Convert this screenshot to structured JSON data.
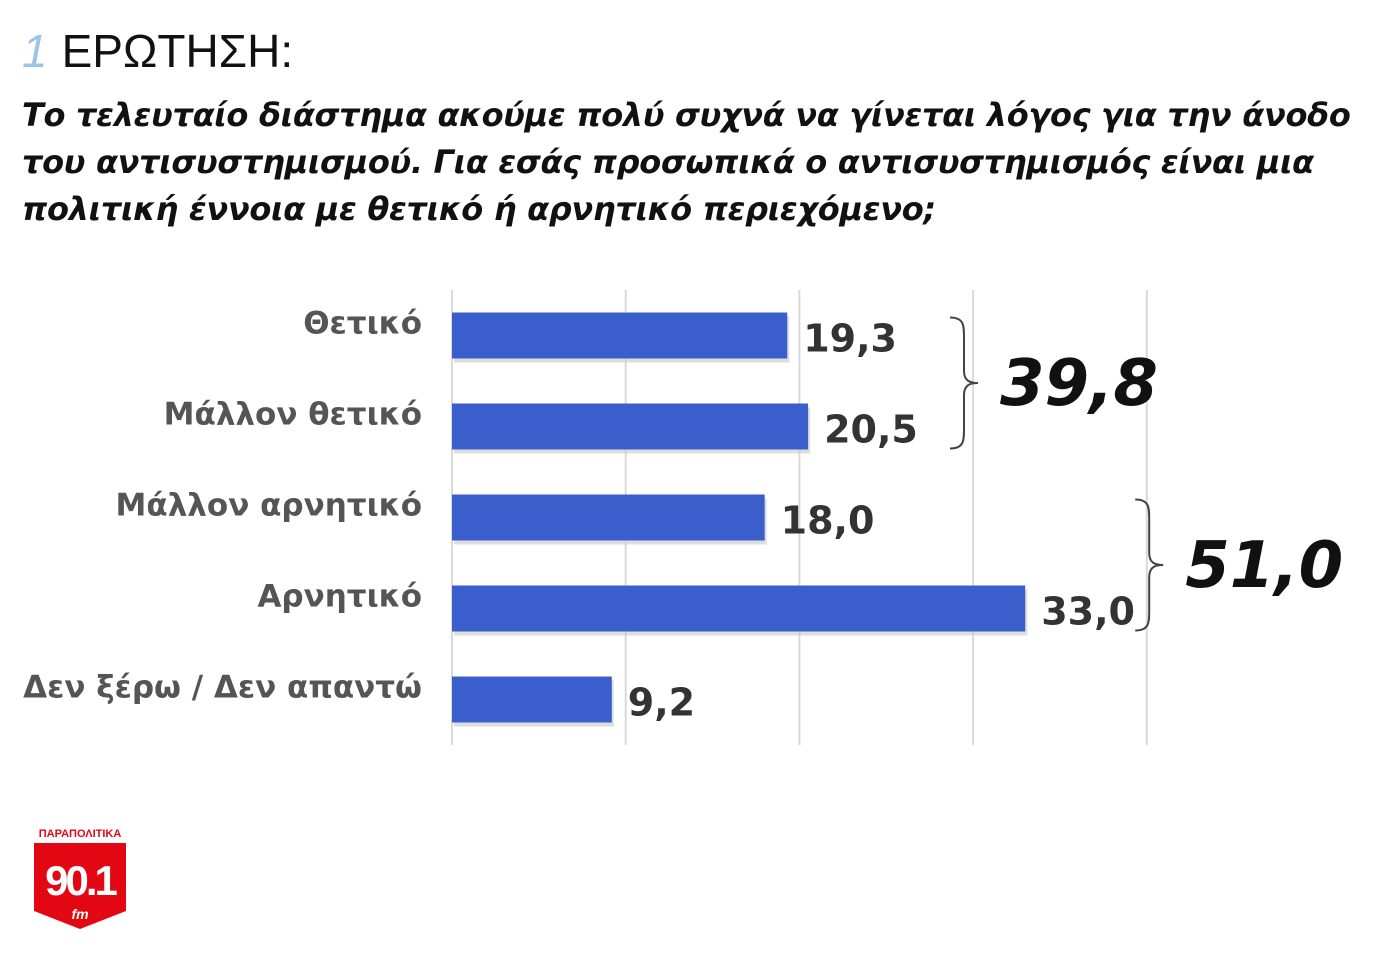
{
  "heading": {
    "number": "1",
    "label": "ΕΡΩΤΗΣΗ:"
  },
  "question": "Το τελευταίο διάστημα ακούμε πολύ συχνά να γίνεται λόγος για την άνοδο του αντισυστημισμού. Για εσάς προσωπικά ο αντισυστημισμός είναι μια πολιτική έννοια με θετικό ή αρνητικό περιεχόμενο;",
  "chart_data": {
    "type": "bar",
    "orientation": "horizontal",
    "categories": [
      "Θετικό",
      "Μάλλον θετικό",
      "Μάλλον αρνητικό",
      "Αρνητικό",
      "Δεν ξέρω / Δεν απαντώ"
    ],
    "values": [
      19.3,
      20.5,
      18.0,
      33.0,
      9.2
    ],
    "value_labels": [
      "19,3",
      "20,5",
      "18,0",
      "33,0",
      "9,2"
    ],
    "xlim": [
      0,
      40
    ],
    "grid": true,
    "bar_color": "#3a5fcd",
    "groups": [
      {
        "label": "39,8",
        "from": 0,
        "to": 1
      },
      {
        "label": "51,0",
        "from": 2,
        "to": 3
      }
    ]
  },
  "logo": {
    "top_text": "ΠΑΡΑΠΟΛΙΤΙΚΑ",
    "number": "90.1",
    "suffix": "fm",
    "color": "#e30613"
  }
}
